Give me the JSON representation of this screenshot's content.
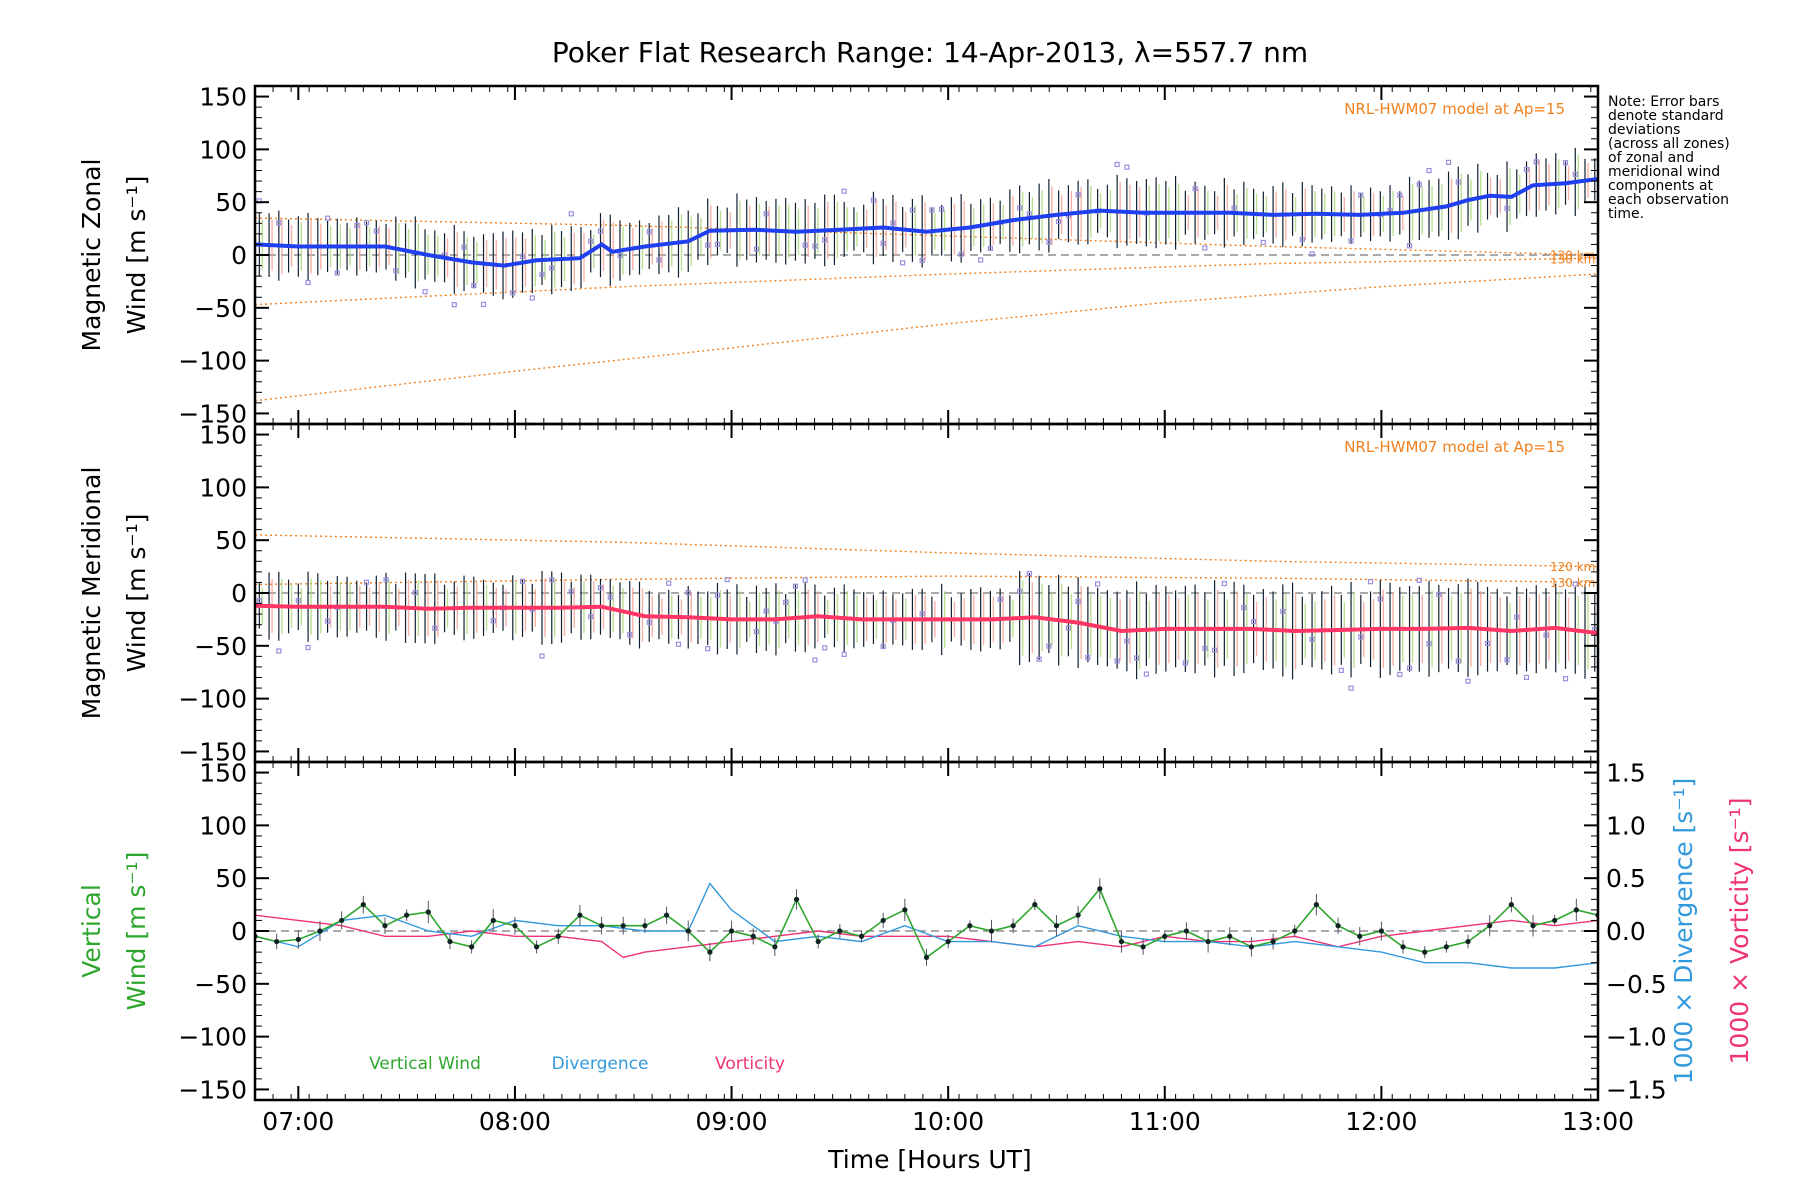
{
  "title": "Poker Flat Research Range: 14-Apr-2013, λ=557.7 nm",
  "note_lines": [
    "Note: Error bars",
    "denote standard",
    "deviations",
    "(across all zones)",
    "of zonal and",
    "meridional wind",
    "components at",
    "each observation",
    "time."
  ],
  "colors": {
    "zonal": "#1f3ff0",
    "meridional": "#ff3565",
    "vertical": "#2ea62e",
    "divergence": "#3399dd",
    "vorticity": "#ee3377",
    "model": "#f08020",
    "scatter": "#9a8fe0"
  },
  "chart_data": [
    {
      "id": "zonal",
      "type": "line",
      "ylabel": [
        "Magnetic Zonal",
        "Wind [m s⁻¹]"
      ],
      "ylim": [
        -160,
        160
      ],
      "yticks": [
        150,
        100,
        50,
        0,
        -50,
        -100,
        -150
      ],
      "ytick_labels": [
        "150",
        "100",
        "50",
        "0",
        "−50",
        "−100",
        "−150"
      ],
      "model_label": "NRL-HWM07 model at Ap=15",
      "model_curves": [
        {
          "name": "120 km",
          "x": [
            6.8,
            8.5,
            10.0,
            11.5,
            13.0
          ],
          "y": [
            35,
            28,
            18,
            8,
            0
          ]
        },
        {
          "name": "130 km",
          "x": [
            6.8,
            8.5,
            10.0,
            11.5,
            13.0
          ],
          "y": [
            -47,
            -30,
            -18,
            -8,
            -3
          ]
        },
        {
          "name": "",
          "x": [
            6.8,
            8.0,
            9.0,
            10.0,
            11.0,
            12.0,
            13.0
          ],
          "y": [
            -138,
            -110,
            -88,
            -65,
            -45,
            -30,
            -18
          ]
        }
      ],
      "series": [
        {
          "name": "Zonal wind",
          "x": [
            6.8,
            7.0,
            7.2,
            7.4,
            7.6,
            7.8,
            7.95,
            8.1,
            8.3,
            8.4,
            8.45,
            8.6,
            8.8,
            8.9,
            9.1,
            9.3,
            9.5,
            9.7,
            9.9,
            10.1,
            10.3,
            10.5,
            10.7,
            10.9,
            11.1,
            11.3,
            11.5,
            11.7,
            11.9,
            12.1,
            12.3,
            12.4,
            12.5,
            12.6,
            12.7,
            12.85,
            13.0
          ],
          "y": [
            10,
            8,
            8,
            8,
            0,
            -7,
            -10,
            -5,
            -3,
            10,
            3,
            8,
            13,
            23,
            24,
            22,
            24,
            26,
            22,
            26,
            33,
            38,
            42,
            40,
            40,
            40,
            38,
            39,
            38,
            40,
            46,
            52,
            56,
            55,
            66,
            68,
            72
          ]
        }
      ]
    },
    {
      "id": "meridional",
      "type": "line",
      "ylabel": [
        "Magnetic Meridional",
        "Wind [m s⁻¹]"
      ],
      "ylim": [
        -160,
        160
      ],
      "yticks": [
        150,
        100,
        50,
        0,
        -50,
        -100,
        -150
      ],
      "ytick_labels": [
        "150",
        "100",
        "50",
        "0",
        "−50",
        "−100",
        "−150"
      ],
      "model_label": "NRL-HWM07 model at Ap=15",
      "model_curves": [
        {
          "name": "120 km",
          "x": [
            6.8,
            8.5,
            10.0,
            11.5,
            13.0
          ],
          "y": [
            55,
            48,
            38,
            30,
            25
          ]
        },
        {
          "name": "130 km",
          "x": [
            6.8,
            8.5,
            10.0,
            11.5,
            13.0
          ],
          "y": [
            8,
            13,
            16,
            14,
            10
          ]
        }
      ],
      "series": [
        {
          "name": "Meridional wind",
          "x": [
            6.8,
            7.0,
            7.2,
            7.4,
            7.6,
            7.8,
            8.0,
            8.2,
            8.4,
            8.6,
            8.8,
            9.0,
            9.2,
            9.4,
            9.6,
            9.8,
            10.0,
            10.2,
            10.4,
            10.6,
            10.8,
            11.0,
            11.2,
            11.4,
            11.6,
            11.8,
            12.0,
            12.2,
            12.4,
            12.6,
            12.8,
            13.0
          ],
          "y": [
            -12,
            -13,
            -13,
            -13,
            -15,
            -14,
            -14,
            -14,
            -13,
            -22,
            -23,
            -25,
            -25,
            -22,
            -25,
            -25,
            -25,
            -25,
            -23,
            -28,
            -36,
            -34,
            -34,
            -34,
            -36,
            -35,
            -34,
            -34,
            -33,
            -36,
            -33,
            -38
          ]
        }
      ]
    },
    {
      "id": "vertical",
      "type": "line",
      "ylabel": [
        "Vertical",
        "Wind [m s⁻¹]"
      ],
      "ylim": [
        -160,
        160
      ],
      "yticks": [
        150,
        100,
        50,
        0,
        -50,
        -100,
        -150
      ],
      "ytick_labels": [
        "150",
        "100",
        "50",
        "0",
        "−50",
        "−100",
        "−150"
      ],
      "y2label": [
        "1000 × Divergence [s⁻¹]",
        "1000 × Vorticity [s⁻¹]"
      ],
      "y2lim": [
        -1.6,
        1.6
      ],
      "y2ticks": [
        1.5,
        1.0,
        0.5,
        0.0,
        -0.5,
        -1.0,
        -1.5
      ],
      "y2tick_labels": [
        "1.5",
        "1.0",
        "0.5",
        "0.0",
        "−0.5",
        "−1.0",
        "−1.5"
      ],
      "legend": [
        "Vertical Wind",
        "Divergence",
        "Vorticity"
      ],
      "series": [
        {
          "name": "Vertical Wind",
          "axis": "left",
          "x": [
            6.8,
            6.9,
            7.0,
            7.1,
            7.2,
            7.3,
            7.4,
            7.5,
            7.6,
            7.7,
            7.8,
            7.9,
            8.0,
            8.1,
            8.2,
            8.3,
            8.4,
            8.5,
            8.6,
            8.7,
            8.8,
            8.9,
            9.0,
            9.1,
            9.2,
            9.3,
            9.4,
            9.5,
            9.6,
            9.7,
            9.8,
            9.9,
            10.0,
            10.1,
            10.2,
            10.3,
            10.4,
            10.5,
            10.6,
            10.7,
            10.8,
            10.9,
            11.0,
            11.1,
            11.2,
            11.3,
            11.4,
            11.5,
            11.6,
            11.7,
            11.8,
            11.9,
            12.0,
            12.1,
            12.2,
            12.3,
            12.4,
            12.5,
            12.6,
            12.7,
            12.8,
            12.9,
            13.0
          ],
          "y": [
            -5,
            -10,
            -8,
            0,
            10,
            25,
            5,
            15,
            18,
            -10,
            -15,
            10,
            5,
            -15,
            -5,
            15,
            5,
            5,
            5,
            15,
            0,
            -20,
            0,
            -5,
            -15,
            30,
            -10,
            0,
            -5,
            10,
            20,
            -25,
            -10,
            5,
            0,
            5,
            25,
            5,
            15,
            40,
            -10,
            -15,
            -5,
            0,
            -10,
            -5,
            -15,
            -10,
            0,
            25,
            5,
            -5,
            0,
            -15,
            -20,
            -15,
            -10,
            5,
            25,
            5,
            10,
            20,
            15
          ]
        },
        {
          "name": "Divergence",
          "axis": "right",
          "x": [
            6.8,
            7.0,
            7.2,
            7.4,
            7.6,
            7.8,
            8.0,
            8.2,
            8.4,
            8.6,
            8.8,
            8.9,
            9.0,
            9.2,
            9.4,
            9.6,
            9.8,
            10.0,
            10.2,
            10.4,
            10.6,
            10.8,
            11.0,
            11.2,
            11.4,
            11.6,
            11.8,
            12.0,
            12.2,
            12.4,
            12.6,
            12.8,
            13.0
          ],
          "y": [
            -0.05,
            -0.15,
            0.1,
            0.15,
            0.0,
            -0.05,
            0.1,
            0.05,
            0.05,
            0.0,
            0.0,
            0.45,
            0.2,
            -0.1,
            -0.05,
            -0.1,
            0.05,
            -0.1,
            -0.1,
            -0.15,
            0.05,
            -0.05,
            -0.1,
            -0.1,
            -0.15,
            -0.1,
            -0.15,
            -0.2,
            -0.3,
            -0.3,
            -0.35,
            -0.35,
            -0.3
          ]
        },
        {
          "name": "Vorticity",
          "axis": "right",
          "x": [
            6.8,
            7.0,
            7.2,
            7.4,
            7.6,
            7.8,
            8.0,
            8.2,
            8.4,
            8.5,
            8.6,
            8.8,
            9.0,
            9.2,
            9.4,
            9.6,
            9.8,
            10.0,
            10.2,
            10.4,
            10.6,
            10.8,
            11.0,
            11.2,
            11.4,
            11.6,
            11.8,
            12.0,
            12.2,
            12.4,
            12.6,
            12.8,
            13.0
          ],
          "y": [
            0.15,
            0.1,
            0.05,
            -0.05,
            -0.05,
            0.0,
            -0.05,
            -0.05,
            -0.1,
            -0.25,
            -0.2,
            -0.15,
            -0.1,
            -0.05,
            0.0,
            -0.05,
            -0.05,
            -0.05,
            -0.1,
            -0.15,
            -0.1,
            -0.15,
            -0.05,
            -0.1,
            -0.1,
            -0.05,
            -0.15,
            -0.05,
            0.0,
            0.05,
            0.1,
            0.05,
            0.1
          ]
        }
      ]
    }
  ],
  "x_axis": {
    "xlabel": "Time [Hours UT]",
    "xlim": [
      6.8,
      13.0
    ],
    "ticks": [
      7,
      8,
      9,
      10,
      11,
      12,
      13
    ],
    "tick_labels": [
      "07:00",
      "08:00",
      "09:00",
      "10:00",
      "11:00",
      "12:00",
      "13:00"
    ]
  }
}
